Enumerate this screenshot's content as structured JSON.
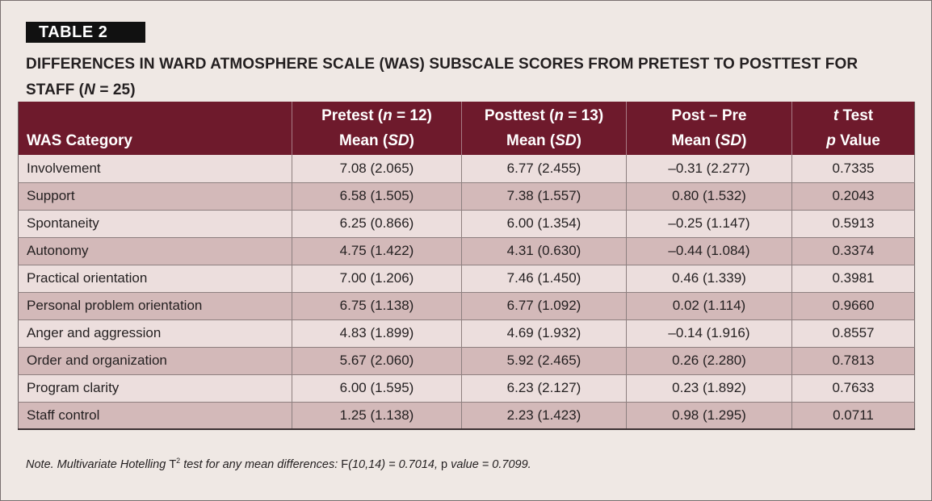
{
  "label": "TABLE 2",
  "title": {
    "prefix": "DIFFERENCES IN WARD ATMOSPHERE SCALE (WAS) SUBSCALE SCORES FROM PRETEST TO POSTTEST FOR STAFF (",
    "n_var": "N",
    "suffix": " = 25)"
  },
  "headers": {
    "category": "WAS Category",
    "pretest": {
      "line1_pre": "Pretest (",
      "line1_var": "n",
      "line1_post": " = 12)",
      "line2_pre": "Mean (",
      "line2_var": "SD",
      "line2_post": ")"
    },
    "posttest": {
      "line1_pre": "Posttest (",
      "line1_var": "n",
      "line1_post": " = 13)",
      "line2_pre": "Mean (",
      "line2_var": "SD",
      "line2_post": ")"
    },
    "diff": {
      "line1": "Post – Pre",
      "line2_pre": "Mean (",
      "line2_var": "SD",
      "line2_post": ")"
    },
    "ttest": {
      "line1_var": "t",
      "line1_post": " Test",
      "line2_var": "p",
      "line2_post": " Value"
    }
  },
  "rows": [
    {
      "category": "Involvement",
      "pretest": "7.08 (2.065)",
      "posttest": "6.77 (2.455)",
      "diff": "–0.31 (2.277)",
      "p": "0.7335"
    },
    {
      "category": "Support",
      "pretest": "6.58 (1.505)",
      "posttest": "7.38 (1.557)",
      "diff": "0.80 (1.532)",
      "p": "0.2043"
    },
    {
      "category": "Spontaneity",
      "pretest": "6.25 (0.866)",
      "posttest": "6.00 (1.354)",
      "diff": "–0.25 (1.147)",
      "p": "0.5913"
    },
    {
      "category": "Autonomy",
      "pretest": "4.75 (1.422)",
      "posttest": "4.31 (0.630)",
      "diff": "–0.44 (1.084)",
      "p": "0.3374"
    },
    {
      "category": "Practical orientation",
      "pretest": "7.00 (1.206)",
      "posttest": "7.46 (1.450)",
      "diff": "0.46 (1.339)",
      "p": "0.3981"
    },
    {
      "category": "Personal problem orientation",
      "pretest": "6.75 (1.138)",
      "posttest": "6.77 (1.092)",
      "diff": "0.02 (1.114)",
      "p": "0.9660"
    },
    {
      "category": "Anger and aggression",
      "pretest": "4.83 (1.899)",
      "posttest": "4.69 (1.932)",
      "diff": "–0.14 (1.916)",
      "p": "0.8557"
    },
    {
      "category": "Order and organization",
      "pretest": "5.67 (2.060)",
      "posttest": "5.92 (2.465)",
      "diff": "0.26 (2.280)",
      "p": "0.7813"
    },
    {
      "category": "Program clarity",
      "pretest": "6.00 (1.595)",
      "posttest": "6.23 (2.127)",
      "diff": "0.23 (1.892)",
      "p": "0.7633"
    },
    {
      "category": "Staff control",
      "pretest": "1.25 (1.138)",
      "posttest": "2.23 (1.423)",
      "diff": "0.98 (1.295)",
      "p": "0.0711"
    }
  ],
  "note": {
    "part1": "Note. Multivariate Hotelling ",
    "T": "T",
    "sup": "2",
    "part2": " test for any mean differences: ",
    "F": "F",
    "part3": "(10,14) = 0.7014, ",
    "p": "p",
    "part4": " value = 0.7099."
  }
}
